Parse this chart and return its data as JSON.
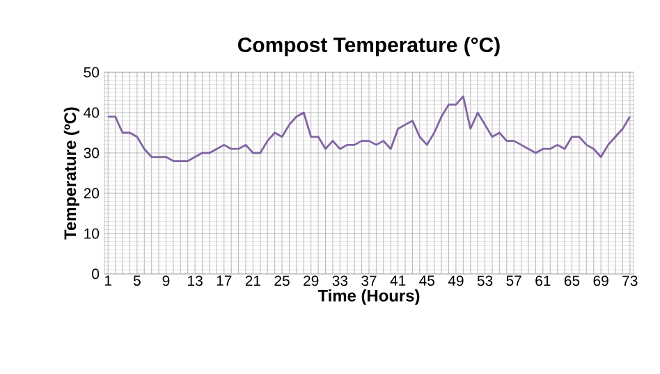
{
  "chart_data": {
    "type": "line",
    "title": "Compost Temperature (°C)",
    "xlabel": "Time (Hours)",
    "ylabel": "Temperature (ºC)",
    "categories": [
      "1",
      null,
      null,
      null,
      "5",
      null,
      null,
      null,
      "9",
      null,
      null,
      null,
      "13",
      null,
      null,
      null,
      "17",
      null,
      null,
      null,
      "21",
      null,
      null,
      null,
      "25",
      null,
      null,
      null,
      "29",
      null,
      null,
      null,
      "33",
      null,
      null,
      null,
      "37",
      null,
      null,
      null,
      "41",
      null,
      null,
      null,
      "45",
      null,
      null,
      null,
      "49",
      null,
      null,
      null,
      "53",
      null,
      null,
      null,
      "57",
      null,
      null,
      null,
      "61",
      null,
      null,
      null,
      "65",
      null,
      null,
      null,
      "69",
      null,
      null,
      null,
      "73"
    ],
    "series": [
      {
        "color": "#8064a2",
        "values": [
          39,
          39,
          35,
          35,
          34,
          31,
          29,
          29,
          29,
          28,
          28,
          28,
          29,
          30,
          30,
          31,
          32,
          31,
          31,
          32,
          30,
          30,
          33,
          35,
          34,
          37,
          39,
          40,
          34,
          34,
          31,
          33,
          31,
          32,
          32,
          33,
          33,
          32,
          33,
          31,
          36,
          37,
          38,
          34,
          32,
          35,
          39,
          42,
          42,
          44,
          36,
          40,
          37,
          34,
          35,
          33,
          33,
          32,
          31,
          30,
          31,
          31,
          32,
          31,
          34,
          34,
          32,
          31,
          29,
          32,
          34,
          36,
          39
        ]
      }
    ],
    "ylim": [
      0,
      50
    ],
    "yticks": [
      0,
      10,
      20,
      30,
      40,
      50
    ],
    "grid": true,
    "marker": "none",
    "line_style": "solid"
  }
}
